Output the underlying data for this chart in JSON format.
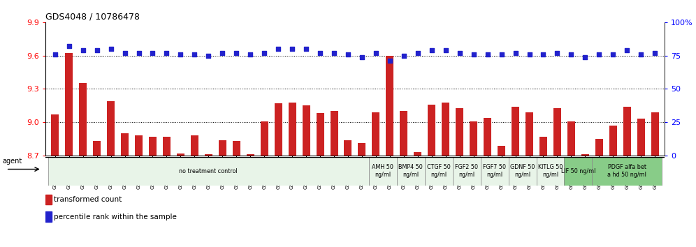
{
  "title": "GDS4048 / 10786478",
  "samples": [
    "GSM509254",
    "GSM509255",
    "GSM509256",
    "GSM510028",
    "GSM510029",
    "GSM510030",
    "GSM510031",
    "GSM510032",
    "GSM510033",
    "GSM510034",
    "GSM510035",
    "GSM510036",
    "GSM510037",
    "GSM510038",
    "GSM510039",
    "GSM510040",
    "GSM510041",
    "GSM510042",
    "GSM510043",
    "GSM510044",
    "GSM510045",
    "GSM510046",
    "GSM510047",
    "GSM509257",
    "GSM509258",
    "GSM509259",
    "GSM510063",
    "GSM510064",
    "GSM510065",
    "GSM510051",
    "GSM510052",
    "GSM510053",
    "GSM510048",
    "GSM510049",
    "GSM510050",
    "GSM510054",
    "GSM510055",
    "GSM510056",
    "GSM510057",
    "GSM510058",
    "GSM510059",
    "GSM510060",
    "GSM510061",
    "GSM510062"
  ],
  "bar_values": [
    9.07,
    9.62,
    9.35,
    8.83,
    9.19,
    8.9,
    8.88,
    8.87,
    8.87,
    8.72,
    8.88,
    8.71,
    8.84,
    8.83,
    8.71,
    9.01,
    9.17,
    9.18,
    9.15,
    9.08,
    9.1,
    8.84,
    8.81,
    9.09,
    9.6,
    9.1,
    8.73,
    9.16,
    9.18,
    9.13,
    9.01,
    9.04,
    8.79,
    9.14,
    9.09,
    8.87,
    9.13,
    9.01,
    8.71,
    8.85,
    8.97,
    9.14,
    9.03,
    9.09
  ],
  "percentile_values": [
    76,
    82,
    79,
    79,
    80,
    77,
    77,
    77,
    77,
    76,
    76,
    75,
    77,
    77,
    76,
    77,
    80,
    80,
    80,
    77,
    77,
    76,
    74,
    77,
    71,
    75,
    77,
    79,
    79,
    77,
    76,
    76,
    76,
    77,
    76,
    76,
    77,
    76,
    74,
    76,
    76,
    79,
    76,
    77
  ],
  "ylim_left": [
    8.7,
    9.9
  ],
  "ylim_right": [
    0,
    100
  ],
  "yticks_left": [
    8.7,
    9.0,
    9.3,
    9.6,
    9.9
  ],
  "yticks_right": [
    0,
    25,
    50,
    75,
    100
  ],
  "bar_color": "#cc2222",
  "dot_color": "#2222cc",
  "bar_baseline": 8.7,
  "agent_groups": [
    {
      "label": "no treatment control",
      "start": 0,
      "end": 23,
      "color": "#e8f4e8"
    },
    {
      "label": "AMH 50\nng/ml",
      "start": 23,
      "end": 25,
      "color": "#e8f4e8"
    },
    {
      "label": "BMP4 50\nng/ml",
      "start": 25,
      "end": 27,
      "color": "#e8f4e8"
    },
    {
      "label": "CTGF 50\nng/ml",
      "start": 27,
      "end": 29,
      "color": "#e8f4e8"
    },
    {
      "label": "FGF2 50\nng/ml",
      "start": 29,
      "end": 31,
      "color": "#e8f4e8"
    },
    {
      "label": "FGF7 50\nng/ml",
      "start": 31,
      "end": 33,
      "color": "#e8f4e8"
    },
    {
      "label": "GDNF 50\nng/ml",
      "start": 33,
      "end": 35,
      "color": "#e8f4e8"
    },
    {
      "label": "KITLG 50\nng/ml",
      "start": 35,
      "end": 37,
      "color": "#e8f4e8"
    },
    {
      "label": "LIF 50 ng/ml",
      "start": 37,
      "end": 39,
      "color": "#88cc88"
    },
    {
      "label": "PDGF alfa bet\na hd 50 ng/ml",
      "start": 39,
      "end": 44,
      "color": "#88cc88"
    }
  ]
}
